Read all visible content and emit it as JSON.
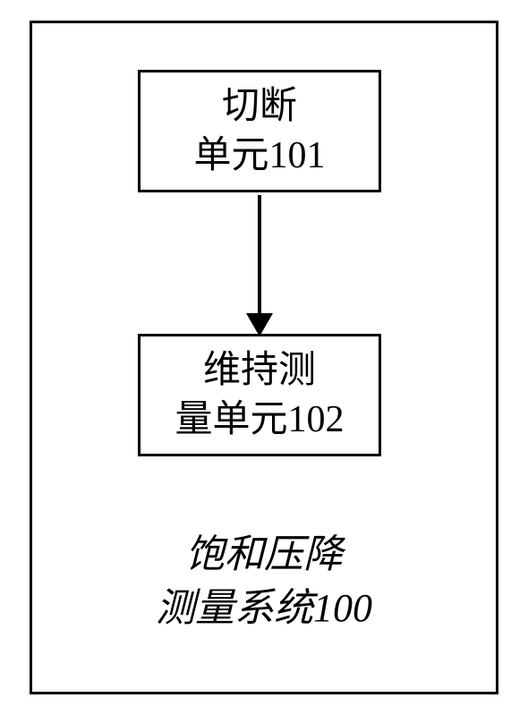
{
  "diagram": {
    "type": "flowchart",
    "outer_border_color": "#000000",
    "outer_border_width": 3,
    "background_color": "#ffffff",
    "nodes": [
      {
        "id": "node1",
        "line1": "切断",
        "line2": "单元101",
        "border_color": "#000000",
        "border_width": 3,
        "fill": "#ffffff",
        "font_size": 42,
        "text_color": "#000000"
      },
      {
        "id": "node2",
        "line1": "维持测",
        "line2": "量单元102",
        "border_color": "#000000",
        "border_width": 3,
        "fill": "#ffffff",
        "font_size": 42,
        "text_color": "#000000"
      }
    ],
    "edges": [
      {
        "from": "node1",
        "to": "node2",
        "stroke": "#000000",
        "stroke_width": 4,
        "arrow": true
      }
    ],
    "caption": {
      "line1": "饱和压降",
      "line2": "测量系统100",
      "font_size": 44,
      "font_style": "italic",
      "text_color": "#000000"
    }
  }
}
